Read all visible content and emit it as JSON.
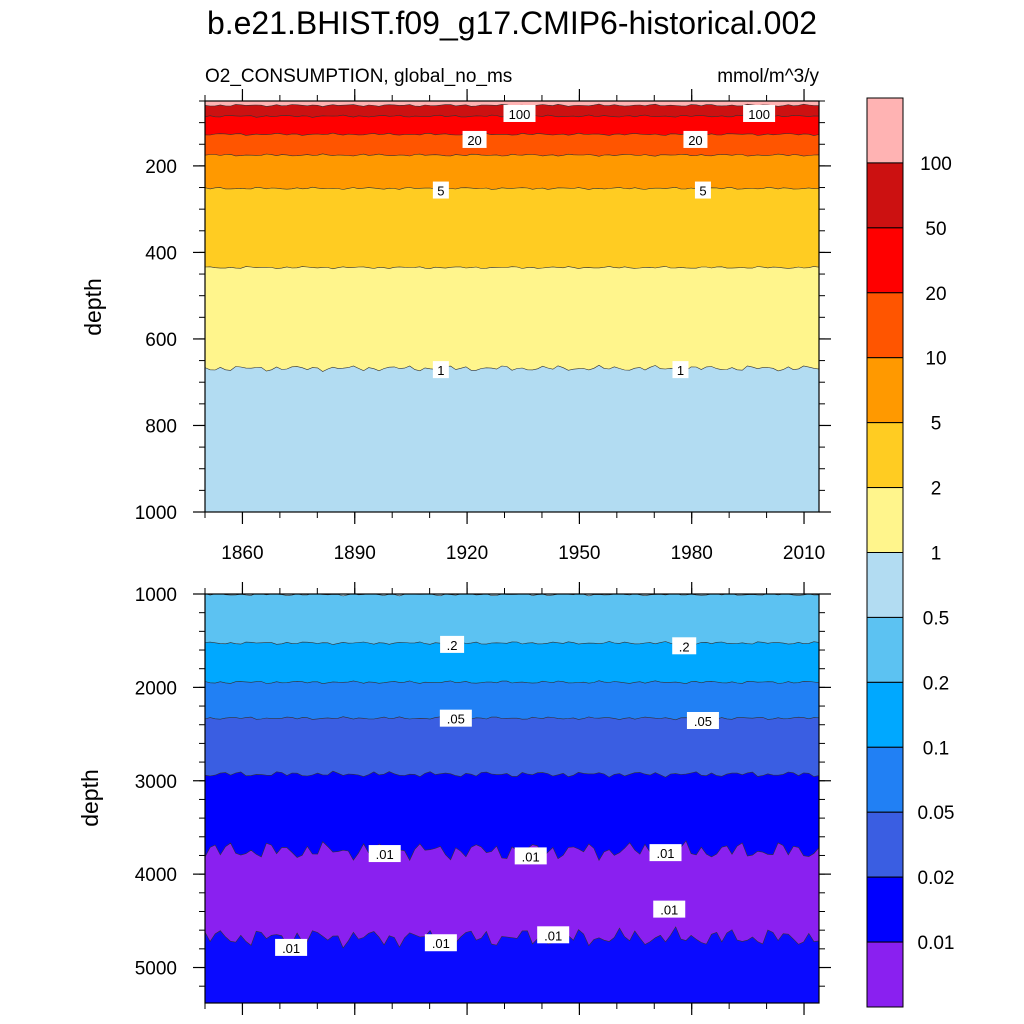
{
  "chart_data": {
    "type": "contour",
    "title": "b.e21.BHIST.f09_g17.CMIP6-historical.002",
    "variable": "O2_CONSUMPTION, global_no_ms",
    "units": "mmol/m^3/y",
    "x_tick_labels": [
      "1860",
      "1890",
      "1920",
      "1950",
      "1980",
      "2010"
    ],
    "x_ticks": [
      1860,
      1890,
      1920,
      1950,
      1980,
      2010
    ],
    "xlim": [
      1850,
      2014
    ],
    "panels": [
      {
        "ylabel": "depth",
        "ylim": [
          1000,
          50
        ],
        "y_ticks": [
          200,
          400,
          600,
          800,
          1000
        ],
        "y_tick_labels": [
          "200",
          "400",
          "600",
          "800",
          "1000"
        ],
        "contour_depths": [
          {
            "level": 100,
            "depth": 60
          },
          {
            "level": 50,
            "depth": 85
          },
          {
            "level": 20,
            "depth": 127
          },
          {
            "level": 10,
            "depth": 175
          },
          {
            "level": 5,
            "depth": 252
          },
          {
            "level": 2,
            "depth": 435
          },
          {
            "level": 1,
            "depth": 668
          },
          {
            "level": 0.5,
            "depth": 1005
          }
        ],
        "contour_labels": [
          {
            "text": "100",
            "year": 1934,
            "depth": 80
          },
          {
            "text": "100",
            "year": 1998,
            "depth": 80
          },
          {
            "text": "20",
            "year": 1922,
            "depth": 140
          },
          {
            "text": "20",
            "year": 1981,
            "depth": 140
          },
          {
            "text": "5",
            "year": 1913,
            "depth": 257
          },
          {
            "text": "5",
            "year": 1983,
            "depth": 257
          },
          {
            "text": "1",
            "year": 1913,
            "depth": 672
          },
          {
            "text": "1",
            "year": 1977,
            "depth": 672
          }
        ]
      },
      {
        "ylabel": "depth",
        "ylim": [
          5380,
          1000
        ],
        "y_ticks": [
          1000,
          2000,
          3000,
          4000,
          5000
        ],
        "y_tick_labels": [
          "1000",
          "2000",
          "3000",
          "4000",
          "5000"
        ],
        "contour_depths": [
          {
            "level": 0.5,
            "depth": 1005
          },
          {
            "level": 0.2,
            "depth": 1525
          },
          {
            "level": 0.1,
            "depth": 1945
          },
          {
            "level": 0.05,
            "depth": 2330
          },
          {
            "level": 0.02,
            "depth": 2930
          },
          {
            "level": 0.01,
            "depth": 3750
          },
          {
            "level": 0.01,
            "depth": 4680
          }
        ],
        "contour_labels": [
          {
            "text": ".2",
            "year": 1916,
            "depth": 1545
          },
          {
            "text": ".2",
            "year": 1978,
            "depth": 1560
          },
          {
            "text": ".05",
            "year": 1917,
            "depth": 2335
          },
          {
            "text": ".05",
            "year": 1983,
            "depth": 2360
          },
          {
            "text": ".01",
            "year": 1898,
            "depth": 3785
          },
          {
            "text": ".01",
            "year": 1937,
            "depth": 3810
          },
          {
            "text": ".01",
            "year": 1973,
            "depth": 3775
          },
          {
            "text": ".01",
            "year": 1974,
            "depth": 4380
          },
          {
            "text": ".01",
            "year": 1873,
            "depth": 4790
          },
          {
            "text": ".01",
            "year": 1913,
            "depth": 4740
          },
          {
            "text": ".01",
            "year": 1943,
            "depth": 4655
          }
        ]
      }
    ],
    "colorbar": {
      "labels": [
        "100",
        "50",
        "20",
        "10",
        "5",
        "2",
        "1",
        "0.5",
        "0.2",
        "0.1",
        "0.05",
        "0.02",
        "0.01"
      ],
      "colors": [
        "#ffb3b3",
        "#cc1111",
        "#ff0000",
        "#ff5500",
        "#ff9900",
        "#ffcc22",
        "#fff58c",
        "#b2dcf2",
        "#5cc2f2",
        "#00a8ff",
        "#2180f4",
        "#3a5ee2",
        "#0000ff",
        "#8a20f0"
      ]
    }
  }
}
